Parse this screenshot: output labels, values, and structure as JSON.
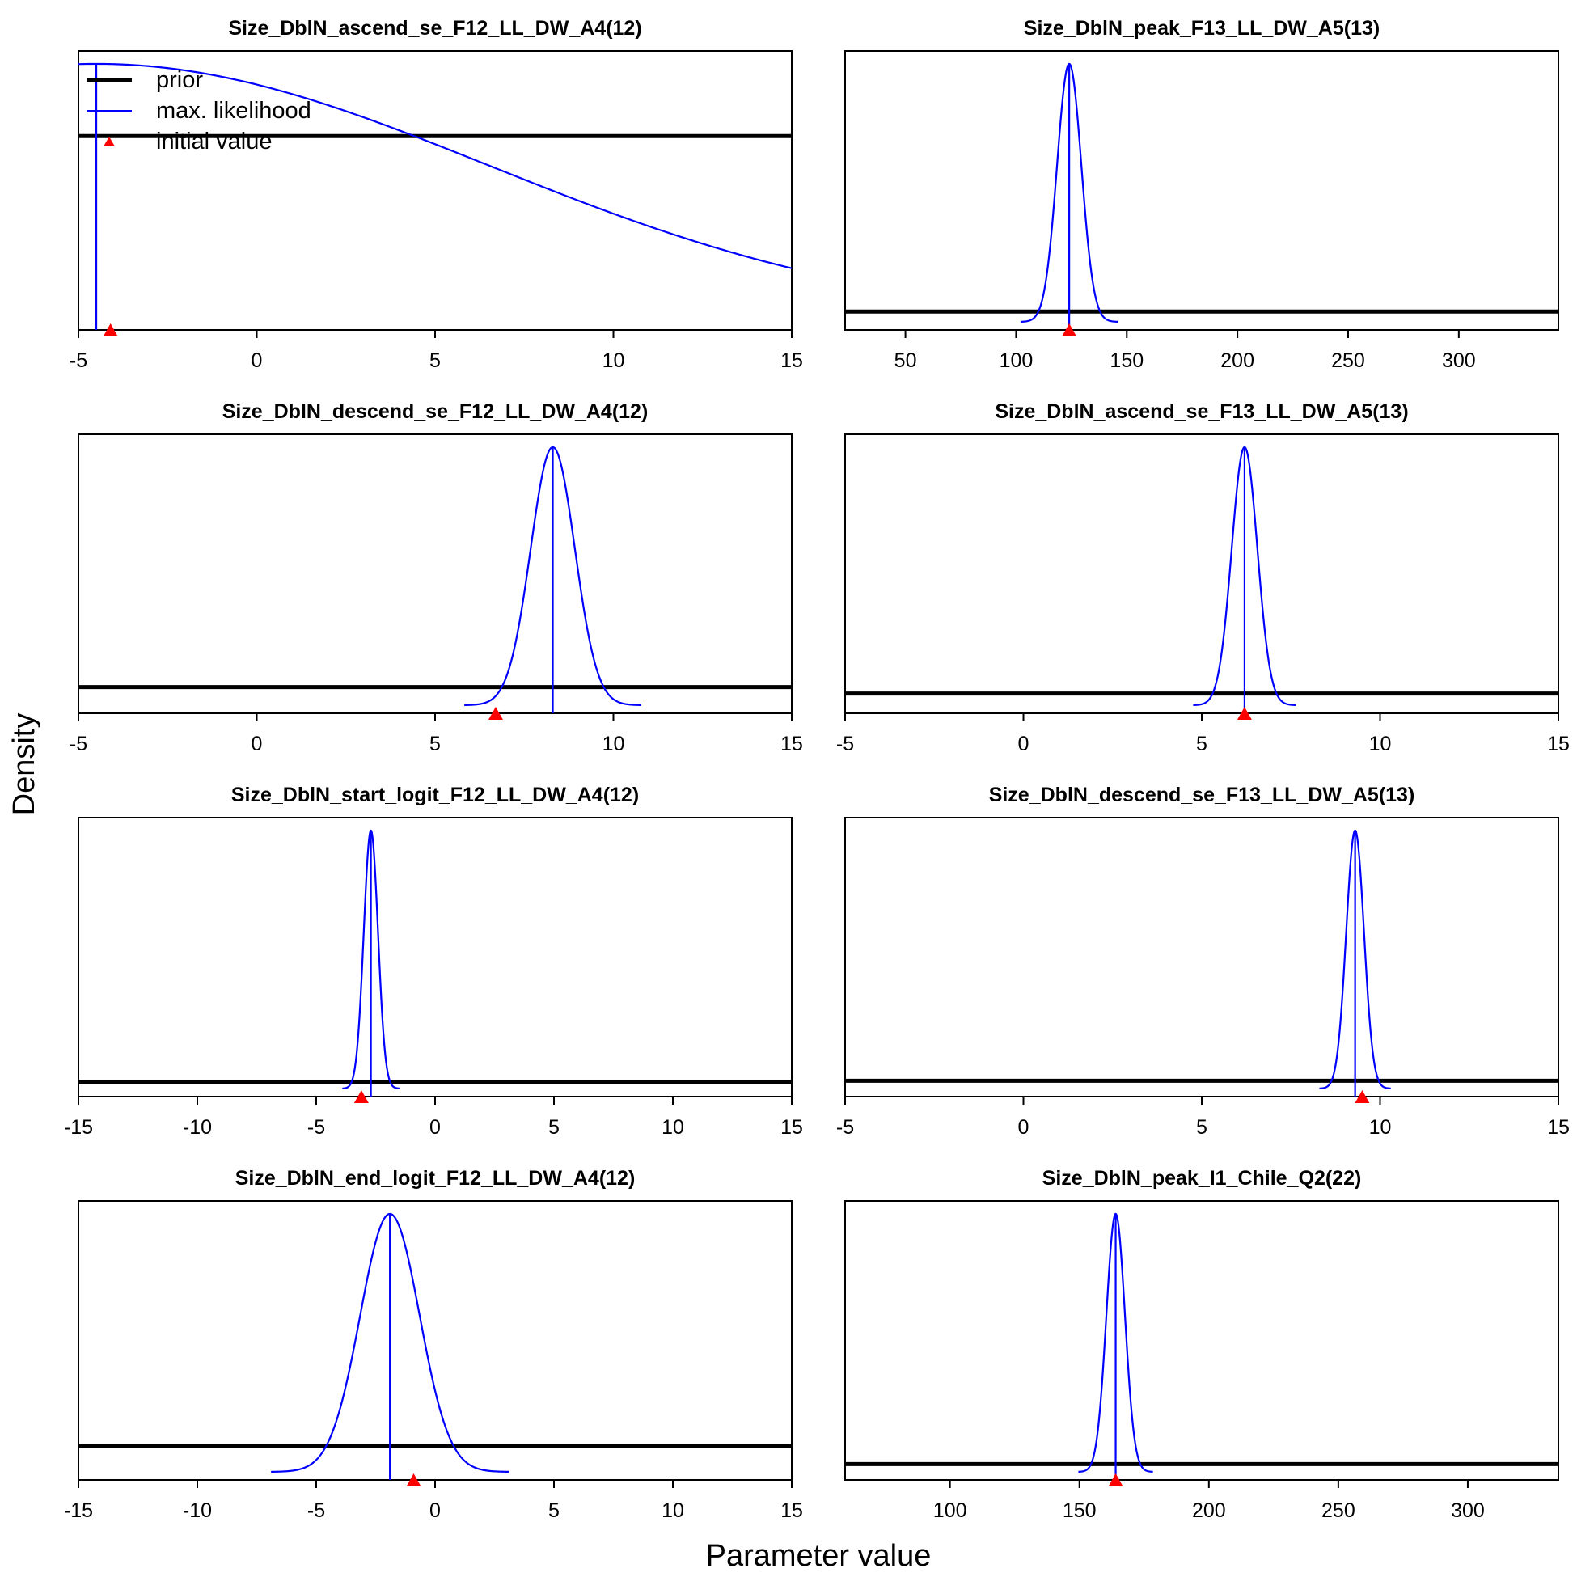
{
  "figure": {
    "xlabel": "Parameter value",
    "ylabel": "Density",
    "legend": {
      "placement": "top-left",
      "entries": [
        {
          "label": "prior",
          "color": "#000000",
          "style": "thick-line"
        },
        {
          "label": "max. likelihood",
          "color": "#0000ff",
          "style": "line"
        },
        {
          "label": "initial value",
          "color": "#ff0000",
          "style": "triangle"
        }
      ]
    },
    "colors": {
      "prior": "#000000",
      "likelihood": "#0000ff",
      "initial": "#ff0000"
    }
  },
  "chart_data": [
    {
      "type": "line",
      "title": "Size_DblN_ascend_se_F12_LL_DW_A4(12)",
      "xlim": [
        -5,
        15
      ],
      "xticks": [
        -5,
        0,
        5,
        10,
        15
      ],
      "ylim": [
        0,
        1.05
      ],
      "prior_level": 0.72,
      "mle": -4.5,
      "sd": 11,
      "initial": -4.1,
      "show_legend": true,
      "grid": false
    },
    {
      "type": "line",
      "title": "Size_DblN_peak_F13_LL_DW_A5(13)",
      "xlim": [
        22.75,
        345
      ],
      "xticks": [
        50,
        100,
        150,
        200,
        250,
        300
      ],
      "ylim": [
        0,
        1.05
      ],
      "prior_level": 0.04,
      "mle": 124,
      "sd": 5.5,
      "initial": 124,
      "grid": false
    },
    {
      "type": "line",
      "title": "Size_DblN_descend_se_F12_LL_DW_A4(12)",
      "xlim": [
        -5,
        15
      ],
      "xticks": [
        -5,
        0,
        5,
        10,
        15
      ],
      "ylim": [
        0,
        1.05
      ],
      "prior_level": 0.07,
      "mle": 8.3,
      "sd": 0.62,
      "initial": 6.7,
      "grid": false
    },
    {
      "type": "line",
      "title": "Size_DblN_ascend_se_F13_LL_DW_A5(13)",
      "xlim": [
        -5,
        15
      ],
      "xticks": [
        -5,
        0,
        5,
        10,
        15
      ],
      "ylim": [
        0,
        1.05
      ],
      "prior_level": 0.045,
      "mle": 6.2,
      "sd": 0.36,
      "initial": 6.2,
      "grid": false
    },
    {
      "type": "line",
      "title": "Size_DblN_start_logit_F12_LL_DW_A4(12)",
      "xlim": [
        -15,
        15
      ],
      "xticks": [
        -15,
        -10,
        -5,
        0,
        5,
        10,
        15
      ],
      "ylim": [
        0,
        1.05
      ],
      "prior_level": 0.025,
      "mle": -2.7,
      "sd": 0.3,
      "initial": -3.1,
      "grid": false
    },
    {
      "type": "line",
      "title": "Size_DblN_descend_se_F13_LL_DW_A5(13)",
      "xlim": [
        -5,
        15
      ],
      "xticks": [
        -5,
        0,
        5,
        10,
        15
      ],
      "ylim": [
        0,
        1.05
      ],
      "prior_level": 0.03,
      "mle": 9.3,
      "sd": 0.25,
      "initial": 9.5,
      "grid": false
    },
    {
      "type": "line",
      "title": "Size_DblN_end_logit_F12_LL_DW_A4(12)",
      "xlim": [
        -15,
        15
      ],
      "xticks": [
        -15,
        -10,
        -5,
        0,
        5,
        10,
        15
      ],
      "ylim": [
        0,
        1.05
      ],
      "prior_level": 0.1,
      "mle": -1.9,
      "sd": 1.25,
      "initial": -0.9,
      "grid": false
    },
    {
      "type": "line",
      "title": "Size_DblN_peak_I1_Chile_Q2(22)",
      "xlim": [
        59.5,
        335
      ],
      "xticks": [
        100,
        150,
        200,
        250,
        300
      ],
      "ylim": [
        0,
        1.05
      ],
      "prior_level": 0.03,
      "mle": 164,
      "sd": 3.6,
      "initial": 164,
      "grid": false
    }
  ]
}
